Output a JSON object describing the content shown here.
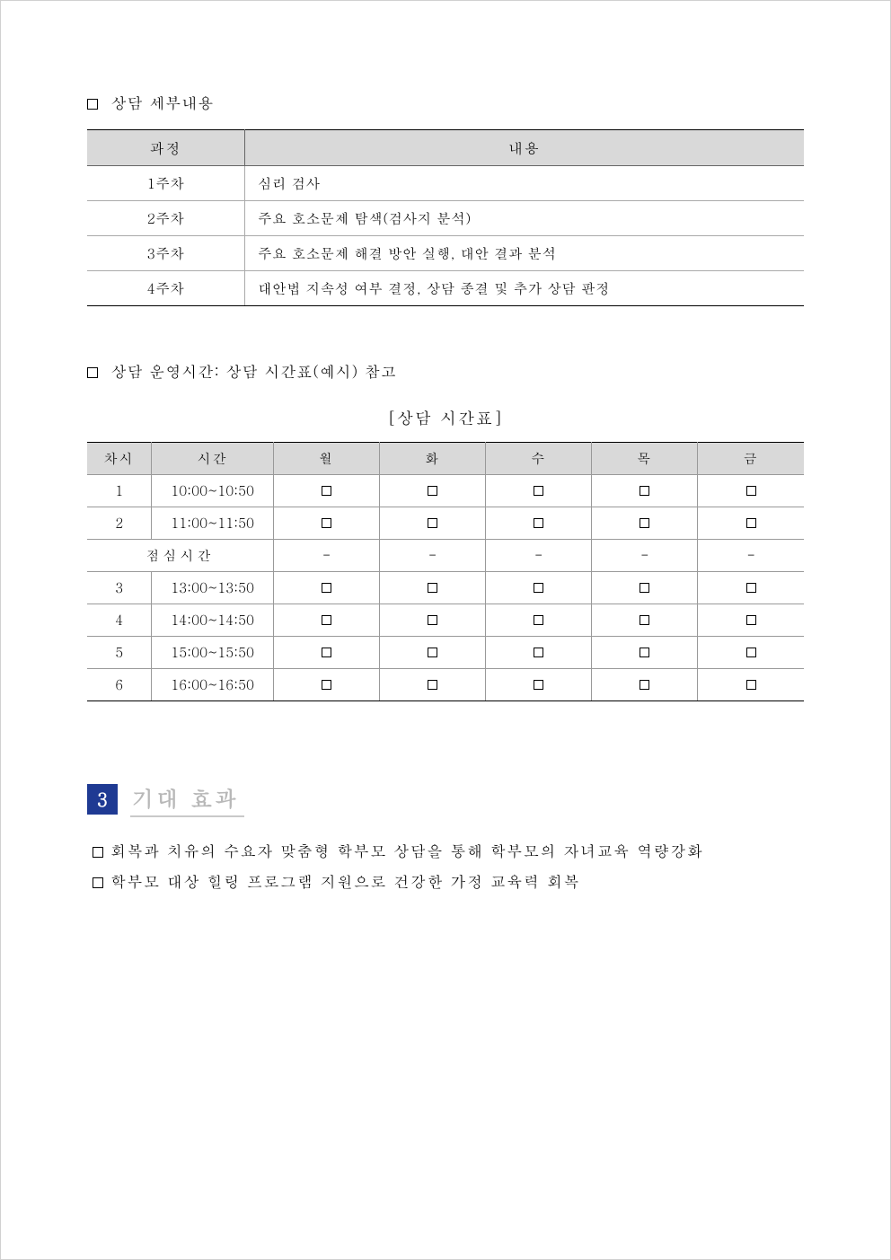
{
  "section_details_label": "상담 세부내용",
  "table1": {
    "headers": [
      "과정",
      "내용"
    ],
    "rows": [
      [
        "1주차",
        "심리 검사"
      ],
      [
        "2주차",
        "주요 호소문제 탐색(검사지 분석)"
      ],
      [
        "3주차",
        "주요 호소문제 해결 방안 실행, 대안 결과 분석"
      ],
      [
        "4주차",
        "대안법 지속성 여부 결정, 상담 종결 및 추가 상담 판정"
      ]
    ],
    "header_bg": "#d9d9d9",
    "border_color": "#999999",
    "outer_border_color": "#000000"
  },
  "section_hours_label": "상담 운영시간: 상담 시간표(예시) 참고",
  "schedule_title": "[상담 시간표]",
  "table2": {
    "headers": [
      "차시",
      "시간",
      "월",
      "화",
      "수",
      "목",
      "금"
    ],
    "lunch_label": "점심시간",
    "dash": "-",
    "rows": [
      {
        "num": "1",
        "time": "10:00~10:50",
        "kind": "slot"
      },
      {
        "num": "2",
        "time": "11:00~11:50",
        "kind": "slot"
      },
      {
        "kind": "lunch"
      },
      {
        "num": "3",
        "time": "13:00~13:50",
        "kind": "slot"
      },
      {
        "num": "4",
        "time": "14:00~14:50",
        "kind": "slot"
      },
      {
        "num": "5",
        "time": "15:00~15:50",
        "kind": "slot"
      },
      {
        "num": "6",
        "time": "16:00~16:50",
        "kind": "slot"
      }
    ],
    "header_bg": "#d9d9d9"
  },
  "section3": {
    "number": "3",
    "title": "기대 효과",
    "badge_bg": "#1f3a93",
    "title_color": "#b8b8b8",
    "bullets": [
      "회복과 치유의 수요자 맞춤형 학부모 상담을 통해 학부모의 자녀교육 역량강화",
      "학부모 대상 힐링 프로그램 지원으로 건강한 가정 교육력 회복"
    ]
  }
}
